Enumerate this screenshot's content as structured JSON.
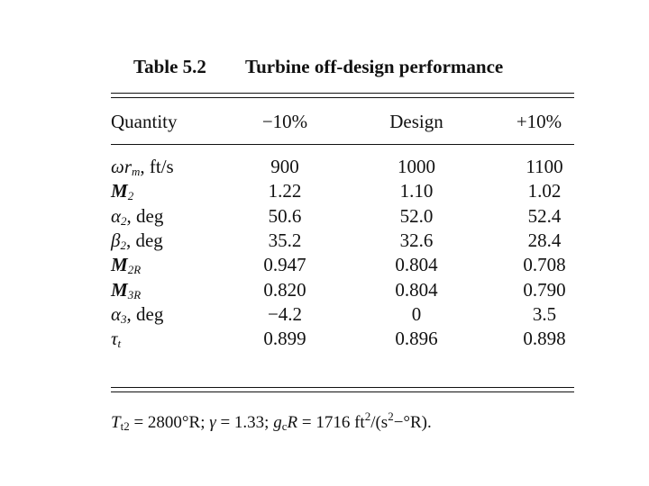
{
  "table": {
    "number": "Table 5.2",
    "title": "Turbine off-design performance",
    "header": [
      "Quantity",
      "−10%",
      "Design",
      "+10%"
    ],
    "rows": [
      {
        "quantity": [
          "ωr",
          "m",
          ", ft/s"
        ],
        "values": [
          "900",
          "1000",
          "1100"
        ]
      },
      {
        "quantity": [
          "M",
          "2"
        ],
        "values": [
          "1.22",
          "1.10",
          "1.02"
        ]
      },
      {
        "quantity": [
          "α",
          "2",
          ", deg"
        ],
        "values": [
          "50.6",
          "52.0",
          "52.4"
        ]
      },
      {
        "quantity": [
          "β",
          "2",
          ", deg"
        ],
        "values": [
          "35.2",
          "32.6",
          "28.4"
        ]
      },
      {
        "quantity": [
          "M",
          "2R"
        ],
        "values": [
          "0.947",
          "0.804",
          "0.708"
        ]
      },
      {
        "quantity": [
          "M",
          "3R"
        ],
        "values": [
          "0.820",
          "0.804",
          "0.790"
        ]
      },
      {
        "quantity": [
          "α",
          "3",
          ", deg"
        ],
        "values": [
          "−4.2",
          "0",
          "3.5"
        ]
      },
      {
        "quantity": [
          "τ",
          "t"
        ],
        "values": [
          "0.899",
          "0.896",
          "0.898"
        ]
      }
    ],
    "footnote": [
      "T",
      "t2",
      " = 2800°R; ",
      "γ",
      " = 1.33; ",
      "g",
      "c",
      "R",
      " = 1716 ft",
      "2",
      "/(s",
      "2",
      "−°R)."
    ]
  }
}
